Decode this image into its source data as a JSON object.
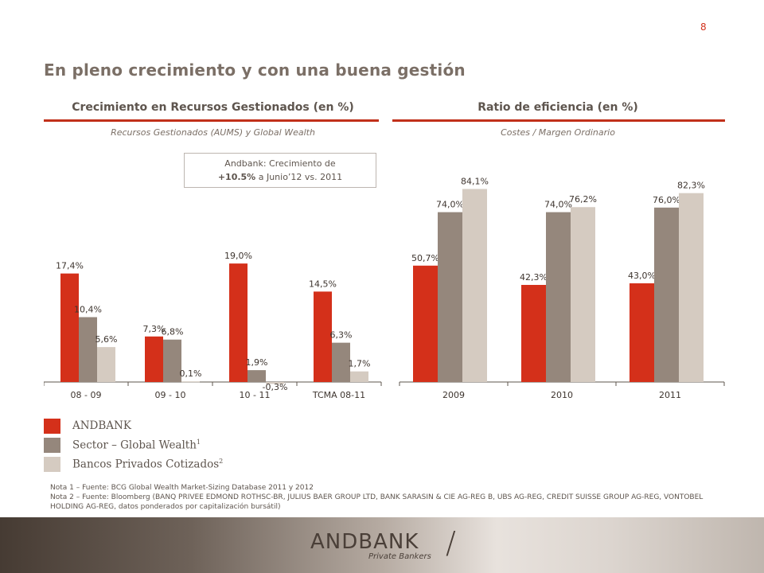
{
  "page_number": "8",
  "title": "En pleno crecimiento y con una buena gestión",
  "left_section": {
    "title": "Crecimiento en Recursos Gestionados (en %)",
    "subtitle": "Recursos Gestionados (AUMS) y Global Wealth"
  },
  "right_section": {
    "title": "Ratio de eficiencia (en %)",
    "subtitle": "Costes / Margen Ordinario"
  },
  "callout": {
    "line1": "Andbank: Crecimiento de",
    "bold": "+10.5%",
    "rest": " a Junio’12 vs. 2011"
  },
  "colors": {
    "andbank": "#d4301a",
    "sector": "#95877c",
    "bancos": "#d5cbc1",
    "accent": "#c1301a"
  },
  "chart_data": [
    {
      "type": "bar",
      "title": "Crecimiento en Recursos Gestionados (en %)",
      "categories": [
        "08 - 09",
        "09 - 10",
        "10 - 11",
        "TCMA 08-11"
      ],
      "series": [
        {
          "name": "ANDBANK",
          "values": [
            17.4,
            7.3,
            19.0,
            14.5
          ],
          "labels": [
            "17,4%",
            "7,3%",
            "19,0%",
            "14,5%"
          ]
        },
        {
          "name": "Sector – Global Wealth",
          "values": [
            10.4,
            6.8,
            1.9,
            6.3
          ],
          "labels": [
            "10,4%",
            "6,8%",
            "1,9%",
            "6,3%"
          ]
        },
        {
          "name": "Bancos Privados Cotizados",
          "values": [
            5.6,
            0.1,
            -0.3,
            1.7
          ],
          "labels": [
            "5,6%",
            "0,1%",
            "-0,3%",
            "1,7%"
          ]
        }
      ],
      "ylim": [
        -1,
        21
      ],
      "grid": false,
      "legend": "bottom-left"
    },
    {
      "type": "bar",
      "title": "Ratio de eficiencia (en %)",
      "categories": [
        "2009",
        "2010",
        "2011"
      ],
      "series": [
        {
          "name": "ANDBANK",
          "values": [
            50.7,
            42.3,
            43.0
          ],
          "labels": [
            "50,7%",
            "42,3%",
            "43,0%"
          ]
        },
        {
          "name": "Sector – Global Wealth",
          "values": [
            74.0,
            74.0,
            76.0
          ],
          "labels": [
            "74,0%",
            "74,0%",
            "76,0%"
          ]
        },
        {
          "name": "Bancos Privados Cotizados",
          "values": [
            84.1,
            76.2,
            82.3
          ],
          "labels": [
            "84,1%",
            "76,2%",
            "82,3%"
          ]
        }
      ],
      "ylim": [
        0,
        90
      ],
      "grid": false,
      "legend": "bottom-left"
    }
  ],
  "legend": [
    {
      "label": "ANDBANK",
      "sup": "",
      "color_key": "andbank"
    },
    {
      "label": "Sector – Global Wealth",
      "sup": "1",
      "color_key": "sector"
    },
    {
      "label": "Bancos Privados Cotizados",
      "sup": "2",
      "color_key": "bancos"
    }
  ],
  "notes": [
    "Nota 1 – Fuente: BCG Global Wealth Market-Sizing Database 2011 y 2012",
    "Nota 2 – Fuente: Bloomberg (BANQ PRIVEE EDMOND ROTHSC-BR, JULIUS BAER GROUP LTD, BANK SARASIN & CIE AG-REG B, UBS AG-REG, CREDIT SUISSE GROUP AG-REG, VONTOBEL HOLDING AG-REG, datos ponderados por capitalización bursátil)"
  ],
  "footer": {
    "logo": "ANDBANK",
    "tagline": "Private Bankers",
    "slash": "/"
  }
}
